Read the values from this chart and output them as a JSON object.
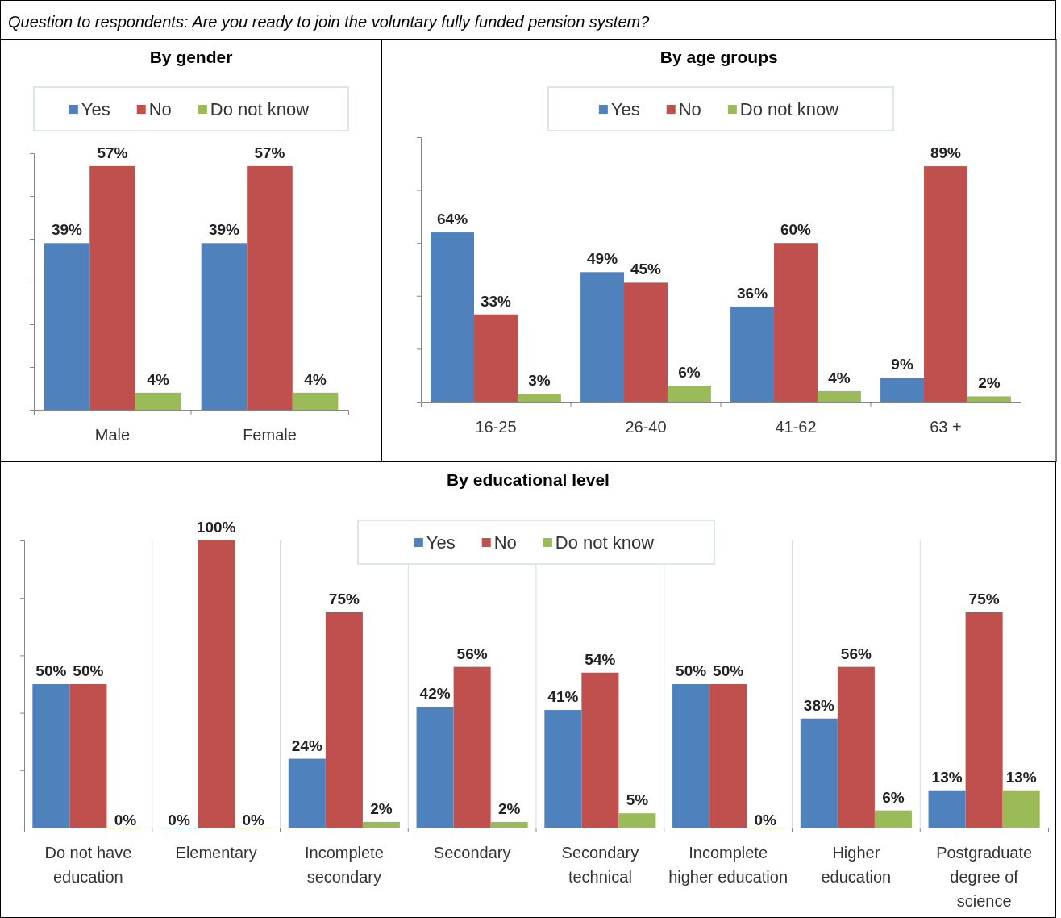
{
  "chart_data": [
    {
      "type": "bar",
      "title": "By gender",
      "annotations": [
        "Question to respondents: Are you ready to join the voluntary fully funded pension system?"
      ],
      "categories": [
        "Male",
        "Female"
      ],
      "ylim": [
        0,
        60
      ],
      "yticks": [
        {
          "value": 0,
          "label": null
        },
        {
          "value": 10,
          "label": null
        },
        {
          "value": 20,
          "label": null
        },
        {
          "value": 30,
          "label": null
        },
        {
          "value": 40,
          "label": null
        },
        {
          "value": 50,
          "label": null
        },
        {
          "value": 60,
          "label": null
        }
      ],
      "legend": "top",
      "series": [
        {
          "name": "Yes",
          "color": "#4f81bd",
          "values": [
            39,
            39
          ],
          "value_labels": [
            "39%",
            "39%"
          ]
        },
        {
          "name": "No",
          "color": "#c0504d",
          "values": [
            57,
            57
          ],
          "value_labels": [
            "57%",
            "57%"
          ]
        },
        {
          "name": "Do not know",
          "color": "#9bbb59",
          "values": [
            4,
            4
          ],
          "value_labels": [
            "4%",
            "4%"
          ]
        }
      ]
    },
    {
      "type": "bar",
      "title": "By age groups",
      "categories": [
        "16-25",
        "26-40",
        "41-62",
        "63 +"
      ],
      "ylim": [
        0,
        100
      ],
      "yticks": [
        {
          "value": 0,
          "label": null
        },
        {
          "value": 20,
          "label": null
        },
        {
          "value": 40,
          "label": null
        },
        {
          "value": 60,
          "label": null
        },
        {
          "value": 80,
          "label": null
        },
        {
          "value": 100,
          "label": null
        }
      ],
      "legend": "top",
      "series": [
        {
          "name": "Yes",
          "color": "#4f81bd",
          "values": [
            64,
            49,
            36,
            9
          ],
          "value_labels": [
            "64%",
            "49%",
            "36%",
            "9%"
          ]
        },
        {
          "name": "No",
          "color": "#c0504d",
          "values": [
            33,
            45,
            60,
            89
          ],
          "value_labels": [
            "33%",
            "45%",
            "60%",
            "89%"
          ]
        },
        {
          "name": "Do not know",
          "color": "#9bbb59",
          "values": [
            3,
            6,
            4,
            2
          ],
          "value_labels": [
            "3%",
            "6%",
            "4%",
            "2%"
          ]
        }
      ]
    },
    {
      "type": "bar",
      "title": "By educational level",
      "categories": [
        "Do not have education",
        "Elementary",
        "Incomplete secondary",
        "Secondary",
        "Secondary technical",
        "Incomplete higher education",
        "Higher education",
        "Postgraduate degree of science"
      ],
      "ylim": [
        0,
        100
      ],
      "yticks": [
        {
          "value": 0,
          "label": null
        },
        {
          "value": 20,
          "label": null
        },
        {
          "value": 40,
          "label": null
        },
        {
          "value": 60,
          "label": null
        },
        {
          "value": 80,
          "label": null
        },
        {
          "value": 100,
          "label": null
        }
      ],
      "grid": "x",
      "legend": "top",
      "series": [
        {
          "name": "Yes",
          "color": "#4f81bd",
          "values": [
            50,
            0,
            24,
            42,
            41,
            50,
            38,
            13
          ],
          "value_labels": [
            "50%",
            "0%",
            "24%",
            "42%",
            "41%",
            "50%",
            "38%",
            "13%"
          ]
        },
        {
          "name": "No",
          "color": "#c0504d",
          "values": [
            50,
            100,
            75,
            56,
            54,
            50,
            56,
            75
          ],
          "value_labels": [
            "50%",
            "100%",
            "75%",
            "56%",
            "54%",
            "50%",
            "56%",
            "75%"
          ]
        },
        {
          "name": "Do not know",
          "color": "#9bbb59",
          "values": [
            0,
            0,
            2,
            2,
            5,
            0,
            6,
            13
          ],
          "value_labels": [
            "0%",
            "0%",
            "2%",
            "2%",
            "5%",
            "0%",
            "6%",
            "13%"
          ]
        }
      ]
    }
  ]
}
